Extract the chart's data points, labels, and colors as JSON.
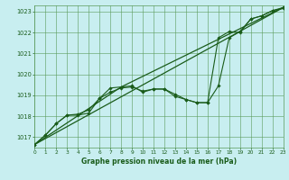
{
  "title": "",
  "xlabel": "Graphe pression niveau de la mer (hPa)",
  "ylabel": "",
  "background_color": "#c8eef0",
  "grid_color": "#5a9a5a",
  "line_color": "#1a5c1a",
  "marker_color": "#1a5c1a",
  "xlim": [
    0,
    23
  ],
  "ylim": [
    1016.5,
    1023.3
  ],
  "yticks": [
    1017,
    1018,
    1019,
    1020,
    1021,
    1022,
    1023
  ],
  "xticks": [
    0,
    1,
    2,
    3,
    4,
    5,
    6,
    7,
    8,
    9,
    10,
    11,
    12,
    13,
    14,
    15,
    16,
    17,
    18,
    19,
    20,
    21,
    22,
    23
  ],
  "line1": [
    1016.65,
    1017.1,
    1017.65,
    1018.05,
    1018.05,
    1018.15,
    1018.85,
    1019.35,
    1019.4,
    1019.45,
    1019.15,
    1019.3,
    1019.3,
    1018.95,
    1018.8,
    1018.65,
    1018.65,
    1019.45,
    1021.75,
    1022.05,
    1022.65,
    1022.8,
    1023.05,
    1023.15
  ],
  "line2": [
    1016.65,
    1017.1,
    1017.65,
    1018.05,
    1018.1,
    1018.3,
    1018.85,
    1019.15,
    1019.35,
    1019.4,
    1019.2,
    1019.3,
    1019.3,
    1019.05,
    1018.8,
    1018.65,
    1018.65,
    1021.75,
    1022.05,
    1022.0,
    1022.65,
    1022.8,
    1023.05,
    1023.2
  ],
  "line3_x": [
    0,
    23
  ],
  "line3_y": [
    1016.65,
    1023.2
  ],
  "line4_x": [
    0,
    8,
    23
  ],
  "line4_y": [
    1016.65,
    1019.4,
    1023.2
  ]
}
